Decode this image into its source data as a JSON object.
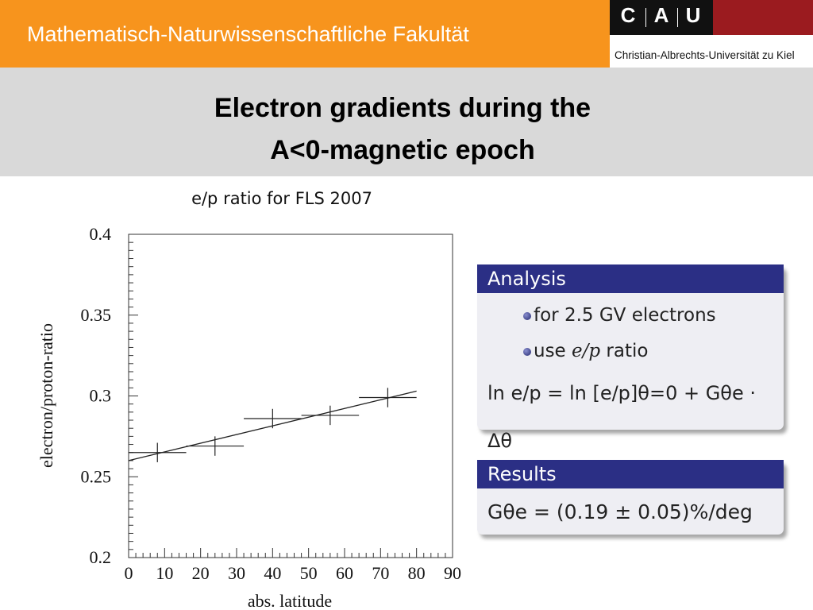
{
  "header": {
    "faculty": "Mathematisch-Naturwissenschaftliche Fakultät",
    "logo_letters": [
      "C",
      "A",
      "U"
    ],
    "university": "Christian-Albrechts-Universität zu Kiel",
    "colors": {
      "orange": "#f7941d",
      "logo_black": "#111111",
      "logo_red": "#9b1b1f"
    }
  },
  "slide": {
    "title_line1": "Electron gradients during the",
    "title_line2": "A<0-magnetic epoch"
  },
  "chart_data": {
    "type": "scatter",
    "title": "e/p ratio for FLS 2007",
    "xlabel": "abs. latitude",
    "ylabel": "electron/proton-ratio",
    "xlim": [
      0,
      90
    ],
    "ylim": [
      0.2,
      0.4
    ],
    "xticks": [
      "0",
      "10",
      "20",
      "30",
      "40",
      "50",
      "60",
      "70",
      "80",
      "90"
    ],
    "yticks": [
      "0.2",
      "0.25",
      "0.3",
      "0.35",
      "0.4"
    ],
    "grid": false,
    "points": [
      {
        "x": 8,
        "y": 0.265,
        "xerr": 8,
        "yerr": 0.006
      },
      {
        "x": 24,
        "y": 0.269,
        "xerr": 8,
        "yerr": 0.006
      },
      {
        "x": 40,
        "y": 0.286,
        "xerr": 8,
        "yerr": 0.006
      },
      {
        "x": 56,
        "y": 0.288,
        "xerr": 8,
        "yerr": 0.006
      },
      {
        "x": 72,
        "y": 0.299,
        "xerr": 8,
        "yerr": 0.006
      }
    ],
    "fit_line": {
      "x": [
        0,
        80
      ],
      "y": [
        0.26,
        0.303
      ]
    }
  },
  "analysis": {
    "heading": "Analysis",
    "bullet_prefix": "for ",
    "bullet_value": "2.5 GV electrons",
    "bullet2_a": "use ",
    "bullet2_b": "e/p",
    "bullet2_c": " ratio",
    "formula": "ln e/p = ln [e/p]θ=0 + Gθe · Δθ"
  },
  "results": {
    "heading": "Results",
    "formula": "Gθe = (0.19 ± 0.05)%/deg"
  },
  "colors": {
    "block_header": "#2b2f85",
    "block_body": "#eeeef3",
    "title_band": "#d9d9d9"
  }
}
